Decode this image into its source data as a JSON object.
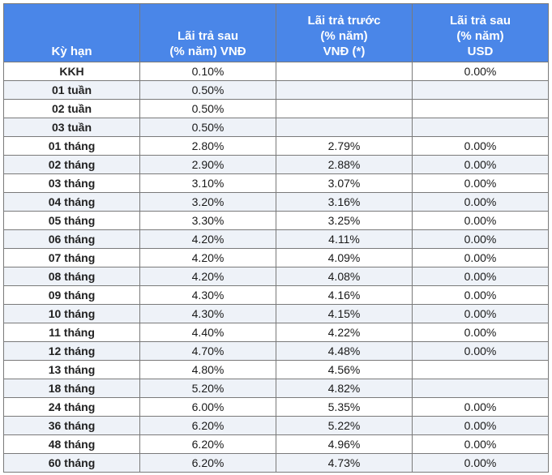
{
  "table": {
    "headers": [
      [
        "Kỳ hạn"
      ],
      [
        "Lãi trả sau",
        "(% năm) VNĐ"
      ],
      [
        "Lãi trả trước",
        "(% năm)",
        "VNĐ (*)"
      ],
      [
        "Lãi trả sau",
        "(% năm)",
        "USD"
      ]
    ],
    "rows": [
      [
        "KKH",
        "0.10%",
        "",
        "0.00%"
      ],
      [
        "01 tuần",
        "0.50%",
        "",
        ""
      ],
      [
        "02 tuần",
        "0.50%",
        "",
        ""
      ],
      [
        "03 tuần",
        "0.50%",
        "",
        ""
      ],
      [
        "01 tháng",
        "2.80%",
        "2.79%",
        "0.00%"
      ],
      [
        "02 tháng",
        "2.90%",
        "2.88%",
        "0.00%"
      ],
      [
        "03 tháng",
        "3.10%",
        "3.07%",
        "0.00%"
      ],
      [
        "04 tháng",
        "3.20%",
        "3.16%",
        "0.00%"
      ],
      [
        "05 tháng",
        "3.30%",
        "3.25%",
        "0.00%"
      ],
      [
        "06 tháng",
        "4.20%",
        "4.11%",
        "0.00%"
      ],
      [
        "07 tháng",
        "4.20%",
        "4.09%",
        "0.00%"
      ],
      [
        "08 tháng",
        "4.20%",
        "4.08%",
        "0.00%"
      ],
      [
        "09 tháng",
        "4.30%",
        "4.16%",
        "0.00%"
      ],
      [
        "10 tháng",
        "4.30%",
        "4.15%",
        "0.00%"
      ],
      [
        "11 tháng",
        "4.40%",
        "4.22%",
        "0.00%"
      ],
      [
        "12 tháng",
        "4.70%",
        "4.48%",
        "0.00%"
      ],
      [
        "13 tháng",
        "4.80%",
        "4.56%",
        ""
      ],
      [
        "18 tháng",
        "5.20%",
        "4.82%",
        ""
      ],
      [
        "24 tháng",
        "6.00%",
        "5.35%",
        "0.00%"
      ],
      [
        "36 tháng",
        "6.20%",
        "5.22%",
        "0.00%"
      ],
      [
        "48 tháng",
        "6.20%",
        "4.96%",
        "0.00%"
      ],
      [
        "60 tháng",
        "6.20%",
        "4.73%",
        "0.00%"
      ]
    ]
  },
  "colors": {
    "header_bg": "#4a86e8",
    "header_text": "#ffffff",
    "stripe_bg": "#eef2f8",
    "border": "#7a7a7a"
  }
}
